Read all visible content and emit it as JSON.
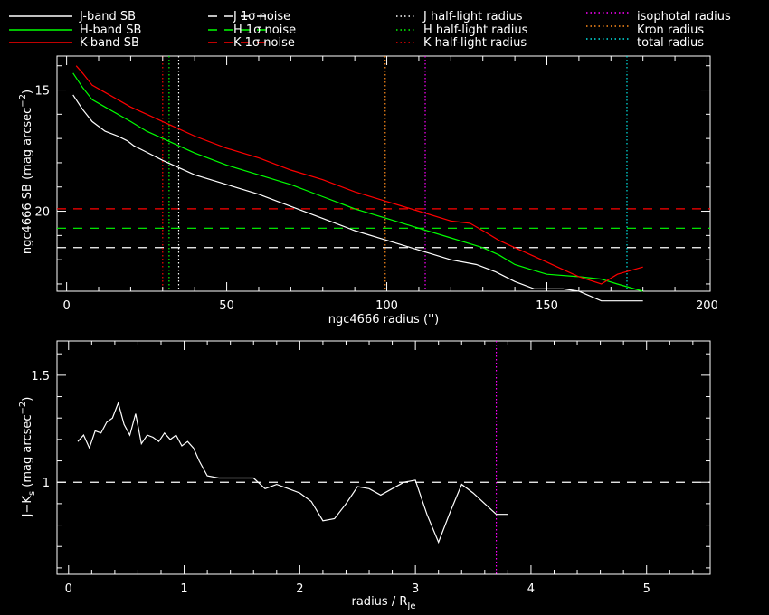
{
  "colors": {
    "J": "#ffffff",
    "H": "#00ff00",
    "K": "#ff0000",
    "iso": "#ff00ff",
    "kron": "#ff8c1a",
    "total": "#00e5e5",
    "frame": "#ffffff",
    "bg": "#000000"
  },
  "legend": [
    {
      "label": "J-band SB",
      "color": "#ffffff",
      "style": "solid"
    },
    {
      "label": "H-band SB",
      "color": "#00ff00",
      "style": "solid"
    },
    {
      "label": "K-band SB",
      "color": "#ff0000",
      "style": "solid"
    },
    {
      "label": "J 1σ noise",
      "color": "#ffffff",
      "style": "dash"
    },
    {
      "label": "H 1σ noise",
      "color": "#00ff00",
      "style": "dash"
    },
    {
      "label": "K 1σ noise",
      "color": "#ff0000",
      "style": "dash"
    },
    {
      "label": "J half-light radius",
      "color": "#ffffff",
      "style": "dot"
    },
    {
      "label": "H half-light radius",
      "color": "#00ff00",
      "style": "dot"
    },
    {
      "label": "K half-light radius",
      "color": "#ff0000",
      "style": "dot"
    },
    {
      "label": "isophotal radius",
      "color": "#ff00ff",
      "style": "dot",
      "colored_text": true
    },
    {
      "label": "Kron radius",
      "color": "#ff8c1a",
      "style": "dot",
      "colored_text": true
    },
    {
      "label": "total radius",
      "color": "#00e5e5",
      "style": "dot",
      "colored_text": true
    }
  ],
  "chart_data": [
    {
      "type": "line",
      "xlabel": "ngc4666 radius ('')",
      "ylabel": "ngc4666 SB (mag arcsec^-2)",
      "xlim": [
        -3,
        201
      ],
      "ylim": [
        23.3,
        13.6
      ],
      "y_inverted": true,
      "xticks": [
        0,
        50,
        100,
        150,
        200
      ],
      "yticks": [
        15,
        20
      ],
      "series": [
        {
          "name": "J-band SB",
          "color": "#ffffff",
          "x": [
            2,
            5,
            8,
            12,
            16,
            19,
            21,
            24,
            30,
            35,
            40,
            50,
            60,
            70,
            80,
            90,
            100,
            110,
            120,
            128,
            134,
            140,
            146,
            150,
            155,
            160,
            167,
            173,
            180
          ],
          "y": [
            15.2,
            15.8,
            16.3,
            16.7,
            16.9,
            17.1,
            17.3,
            17.5,
            17.9,
            18.2,
            18.5,
            18.9,
            19.3,
            19.8,
            20.3,
            20.8,
            21.2,
            21.6,
            22.0,
            22.2,
            22.5,
            22.9,
            23.2,
            23.2,
            23.2,
            23.3,
            23.7,
            23.7,
            23.7
          ]
        },
        {
          "name": "H-band SB",
          "color": "#00ff00",
          "x": [
            2,
            5,
            8,
            12,
            16,
            20,
            25,
            30,
            35,
            40,
            50,
            60,
            70,
            80,
            90,
            100,
            110,
            120,
            130,
            135,
            140,
            145,
            150,
            160,
            167,
            172,
            180
          ],
          "y": [
            14.3,
            14.9,
            15.4,
            15.7,
            16.0,
            16.3,
            16.7,
            17.0,
            17.3,
            17.6,
            18.1,
            18.5,
            18.9,
            19.4,
            19.9,
            20.3,
            20.7,
            21.1,
            21.5,
            21.8,
            22.2,
            22.4,
            22.6,
            22.7,
            22.8,
            23.0,
            23.3
          ]
        },
        {
          "name": "K-band SB",
          "color": "#ff0000",
          "x": [
            3,
            5,
            8,
            12,
            16,
            20,
            25,
            30,
            35,
            40,
            50,
            60,
            70,
            80,
            90,
            100,
            110,
            120,
            126,
            130,
            135,
            140,
            145,
            150,
            155,
            160,
            167,
            172,
            180
          ],
          "y": [
            14.0,
            14.3,
            14.8,
            15.1,
            15.4,
            15.7,
            16.0,
            16.3,
            16.6,
            16.9,
            17.4,
            17.8,
            18.3,
            18.7,
            19.2,
            19.6,
            20.0,
            20.4,
            20.5,
            20.8,
            21.2,
            21.5,
            21.8,
            22.1,
            22.4,
            22.7,
            23.0,
            22.6,
            22.3
          ]
        }
      ],
      "hlines": [
        {
          "name": "J 1σ noise",
          "y": 21.5,
          "color": "#ffffff"
        },
        {
          "name": "H 1σ noise",
          "y": 20.7,
          "color": "#00ff00"
        },
        {
          "name": "K 1σ noise",
          "y": 19.9,
          "color": "#ff0000"
        }
      ],
      "vlines": [
        {
          "name": "K half-light radius",
          "x": 30,
          "color": "#ff0000"
        },
        {
          "name": "H half-light radius",
          "x": 32,
          "color": "#00ff00"
        },
        {
          "name": "J half-light radius",
          "x": 35,
          "color": "#ffffff"
        },
        {
          "name": "Kron radius",
          "x": 99.5,
          "color": "#ff8c1a"
        },
        {
          "name": "isophotal radius",
          "x": 112,
          "color": "#ff00ff"
        },
        {
          "name": "total radius",
          "x": 175,
          "color": "#00e5e5"
        }
      ]
    },
    {
      "type": "line",
      "xlabel": "radius / R_Je",
      "ylabel": "J-K_s (mag arcsec^-2)",
      "xlim": [
        -0.1,
        5.55
      ],
      "ylim": [
        0.57,
        1.66
      ],
      "xticks": [
        0,
        1,
        2,
        3,
        4,
        5
      ],
      "yticks": [
        1,
        1.5
      ],
      "series": [
        {
          "name": "J-K_s",
          "color": "#ffffff",
          "x": [
            0.08,
            0.13,
            0.18,
            0.23,
            0.28,
            0.33,
            0.38,
            0.43,
            0.48,
            0.53,
            0.58,
            0.63,
            0.68,
            0.73,
            0.78,
            0.83,
            0.88,
            0.93,
            0.98,
            1.03,
            1.08,
            1.13,
            1.2,
            1.3,
            1.4,
            1.5,
            1.6,
            1.7,
            1.8,
            1.9,
            2.0,
            2.1,
            2.2,
            2.3,
            2.4,
            2.5,
            2.6,
            2.7,
            2.8,
            2.9,
            3.0,
            3.1,
            3.2,
            3.3,
            3.4,
            3.5,
            3.6,
            3.7,
            3.8
          ],
          "y": [
            1.19,
            1.22,
            1.16,
            1.24,
            1.23,
            1.28,
            1.3,
            1.37,
            1.27,
            1.22,
            1.32,
            1.18,
            1.22,
            1.21,
            1.19,
            1.23,
            1.2,
            1.22,
            1.17,
            1.19,
            1.16,
            1.1,
            1.03,
            1.02,
            1.02,
            1.02,
            1.02,
            0.97,
            0.99,
            0.97,
            0.95,
            0.91,
            0.82,
            0.83,
            0.9,
            0.98,
            0.97,
            0.94,
            0.97,
            1.0,
            1.01,
            0.85,
            0.72,
            0.86,
            0.99,
            0.95,
            0.9,
            0.85,
            0.85
          ]
        }
      ],
      "hlines": [
        {
          "name": "zero-point",
          "y": 1.0,
          "color": "#ffffff"
        }
      ],
      "vlines": [
        {
          "name": "isophotal radius",
          "x": 3.7,
          "color": "#ff00ff"
        }
      ]
    }
  ]
}
